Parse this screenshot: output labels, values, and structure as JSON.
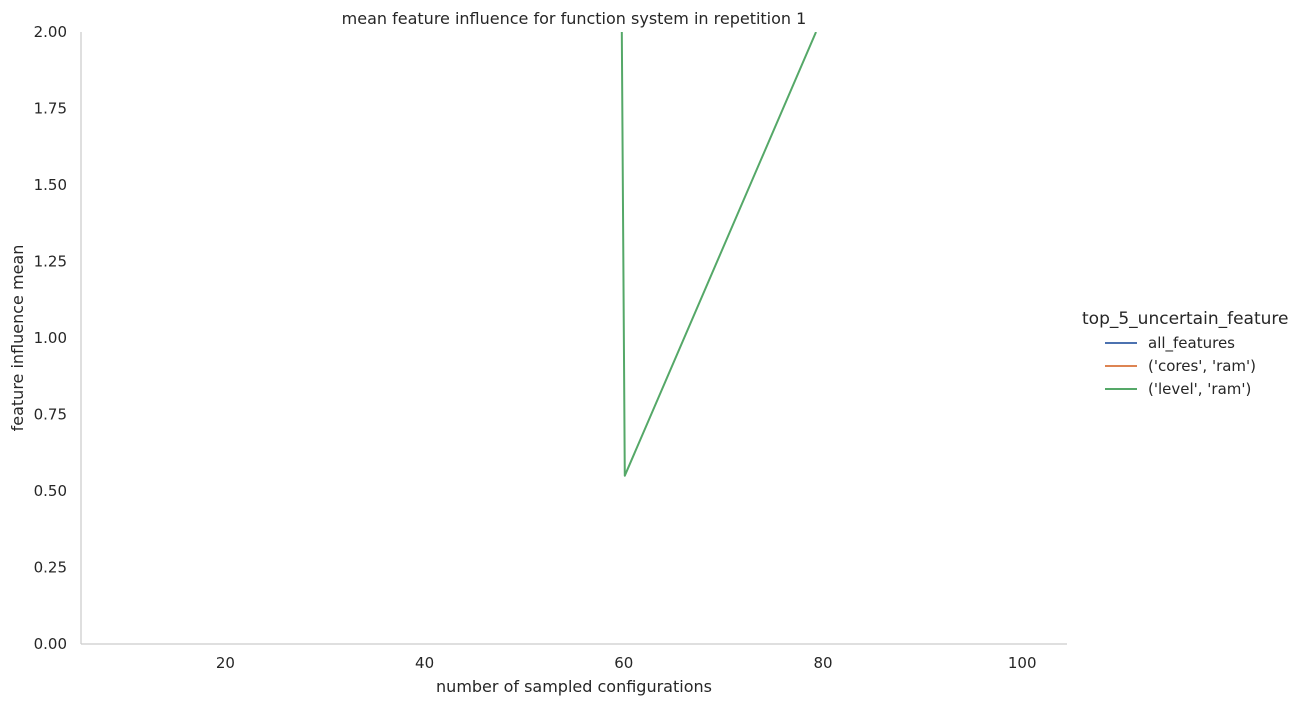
{
  "chart_data": {
    "type": "line",
    "title": "mean feature influence for function system in repetition 1",
    "xlabel": "number of sampled configurations",
    "ylabel": "feature influence mean",
    "xlim": [
      5.5,
      104.5
    ],
    "ylim": [
      0,
      2
    ],
    "xticks": [
      20,
      40,
      60,
      80,
      100
    ],
    "yticks": [
      "0.00",
      "0.25",
      "0.50",
      "0.75",
      "1.00",
      "1.25",
      "1.50",
      "1.75",
      "2.00"
    ],
    "grid": false,
    "legend": {
      "title": "top_5_uncertain_feature",
      "placement": "right"
    },
    "series": [
      {
        "name": "all_features",
        "color": "#4c72b0",
        "points": []
      },
      {
        "name": "('cores', 'ram')",
        "color": "#dd8452",
        "points": []
      },
      {
        "name": "('level', 'ram')",
        "color": "#55a868",
        "points": [
          [
            59.8,
            2.0
          ],
          [
            60.1,
            0.55
          ],
          [
            79.3,
            2.0
          ]
        ]
      }
    ]
  }
}
